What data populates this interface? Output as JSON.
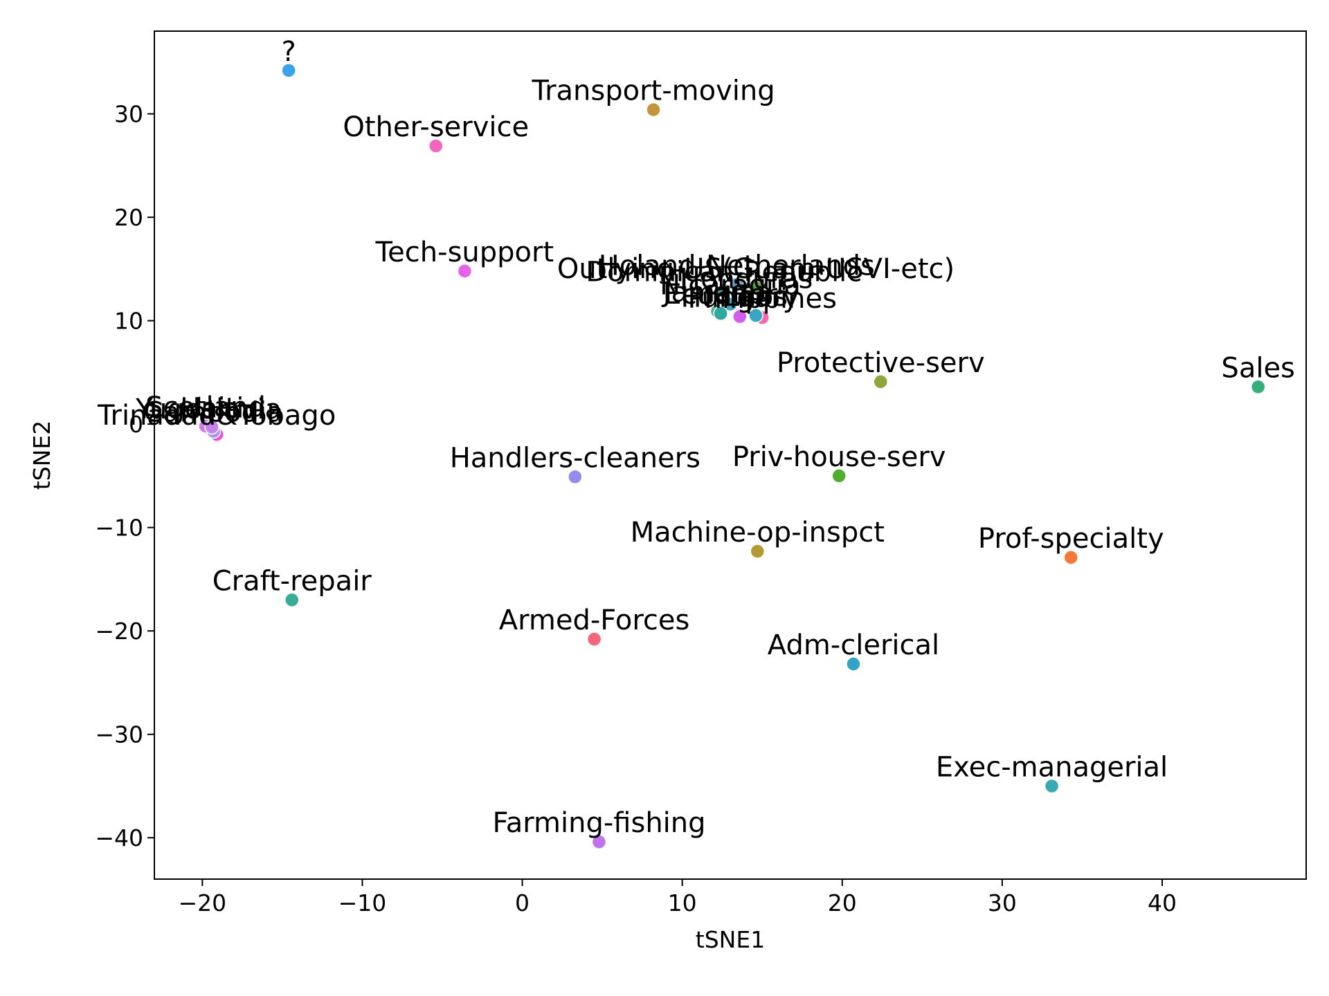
{
  "chart_data": {
    "type": "scatter",
    "title": "",
    "xlabel": "tSNE1",
    "ylabel": "tSNE2",
    "xlim": [
      -23,
      49
    ],
    "ylim": [
      -44,
      38
    ],
    "xticks": [
      -20,
      -10,
      0,
      10,
      20,
      30,
      40
    ],
    "yticks": [
      -40,
      -30,
      -20,
      -10,
      0,
      10,
      20,
      30
    ],
    "grid": false,
    "legend": "none",
    "points": [
      {
        "label": "?",
        "x": -14.6,
        "y": 34.2,
        "color": "#3ba3ec"
      },
      {
        "label": "Transport-moving",
        "x": 8.2,
        "y": 30.4,
        "color": "#c4963a"
      },
      {
        "label": "Other-service",
        "x": -5.4,
        "y": 26.9,
        "color": "#f565c0"
      },
      {
        "label": "Tech-support",
        "x": -3.6,
        "y": 14.8,
        "color": "#e562ea"
      },
      {
        "label": "Outlying-US(Guam-USVI-etc)",
        "x": 14.6,
        "y": 13.2,
        "color": "#5da53c"
      },
      {
        "label": "Holand-Netherlands",
        "x": 13.4,
        "y": 13.5,
        "color": "#6ea0c8"
      },
      {
        "label": "Dominican-Republic",
        "x": 12.6,
        "y": 12.9,
        "color": "#36ada4"
      },
      {
        "label": "Honduras",
        "x": 14.0,
        "y": 12.2,
        "color": "#9d9a38"
      },
      {
        "label": "Nicaragua",
        "x": 13.0,
        "y": 11.6,
        "color": "#3aa6c0"
      },
      {
        "label": "Jamaica",
        "x": 12.2,
        "y": 10.9,
        "color": "#49b18e"
      },
      {
        "label": "Philippines",
        "x": 15.0,
        "y": 10.3,
        "color": "#f566ae"
      },
      {
        "label": "Hungary",
        "x": 13.6,
        "y": 10.4,
        "color": "#d45ded"
      },
      {
        "label": "Ecuador",
        "x": 12.4,
        "y": 10.7,
        "color": "#2fa8a0"
      },
      {
        "label": "Laos",
        "x": 14.6,
        "y": 10.5,
        "color": "#37a7c4"
      },
      {
        "label": "Protective-serv",
        "x": 22.4,
        "y": 4.1,
        "color": "#8ea63a"
      },
      {
        "label": "Sales",
        "x": 46.0,
        "y": 3.6,
        "color": "#34ae7a"
      },
      {
        "label": "Trinadad&Tobago",
        "x": -19.1,
        "y": -1.0,
        "color": "#ef4fd9"
      },
      {
        "label": "Yugoslavia",
        "x": -19.6,
        "y": -0.4,
        "color": "#b98cf0"
      },
      {
        "label": "Cambodia",
        "x": -19.3,
        "y": -0.7,
        "color": "#a592ee"
      },
      {
        "label": "Scotland",
        "x": -19.8,
        "y": -0.2,
        "color": "#cf7ee8"
      },
      {
        "label": "Haiti",
        "x": -19.4,
        "y": -0.3,
        "color": "#c784e8"
      },
      {
        "label": "Handlers-cleaners",
        "x": 3.3,
        "y": -5.1,
        "color": "#958ceb"
      },
      {
        "label": "Priv-house-serv",
        "x": 19.8,
        "y": -5.0,
        "color": "#4eae2d"
      },
      {
        "label": "Machine-op-inspct",
        "x": 14.7,
        "y": -12.3,
        "color": "#b39a32"
      },
      {
        "label": "Prof-specialty",
        "x": 34.3,
        "y": -12.9,
        "color": "#f67938"
      },
      {
        "label": "Craft-repair",
        "x": -14.4,
        "y": -17.0,
        "color": "#36ad94"
      },
      {
        "label": "Armed-Forces",
        "x": 4.5,
        "y": -20.8,
        "color": "#f4657e"
      },
      {
        "label": "Adm-clerical",
        "x": 20.7,
        "y": -23.2,
        "color": "#36a3c6"
      },
      {
        "label": "Exec-managerial",
        "x": 33.1,
        "y": -35.0,
        "color": "#35aab5"
      },
      {
        "label": "Farming-fishing",
        "x": 4.8,
        "y": -40.4,
        "color": "#c173ee"
      }
    ]
  }
}
